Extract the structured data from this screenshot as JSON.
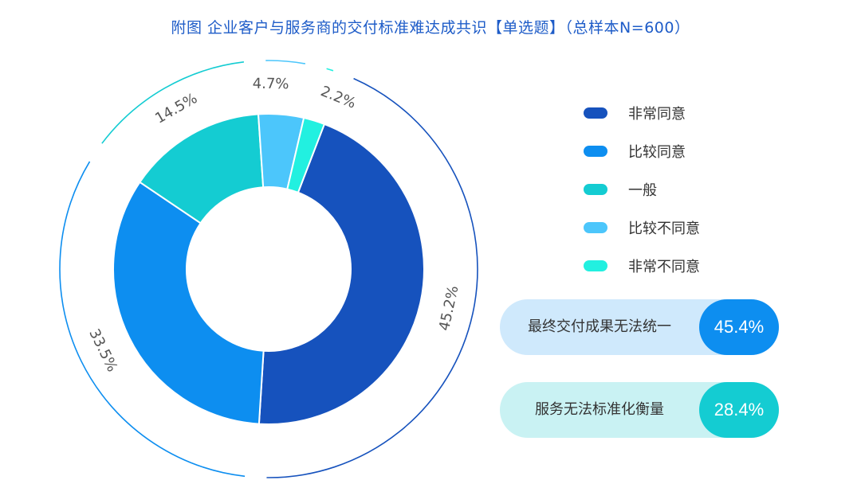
{
  "title": "附图 企业客户与服务商的交付标准难达成共识【单选题】（总样本N=600）",
  "chart_data": {
    "type": "donut",
    "categories": [
      "非常同意",
      "比较同意",
      "一般",
      "比较不同意",
      "非常不同意"
    ],
    "values": [
      45.2,
      33.5,
      14.5,
      4.7,
      2.2
    ],
    "labels": [
      "45.2%",
      "33.5%",
      "14.5%",
      "4.7%",
      "2.2%"
    ],
    "colors": [
      "#1652bd",
      "#0d8ef0",
      "#14ccd2",
      "#4cc6fb",
      "#22f0e0"
    ],
    "legend_position": "right"
  },
  "legend": [
    {
      "label": "非常同意",
      "color": "#1652bd"
    },
    {
      "label": "比较同意",
      "color": "#0d8ef0"
    },
    {
      "label": "一般",
      "color": "#14ccd2"
    },
    {
      "label": "比较不同意",
      "color": "#4cc6fb"
    },
    {
      "label": "非常不同意",
      "color": "#22f0e0"
    }
  ],
  "callouts": [
    {
      "text": "最终交付成果无法统一",
      "value": "45.4%",
      "bg": "#cfe9fc",
      "circle": "#0d8ef0"
    },
    {
      "text": "服务无法标准化衡量",
      "value": "28.4%",
      "bg": "#c9f2f3",
      "circle": "#14ccd2"
    }
  ]
}
